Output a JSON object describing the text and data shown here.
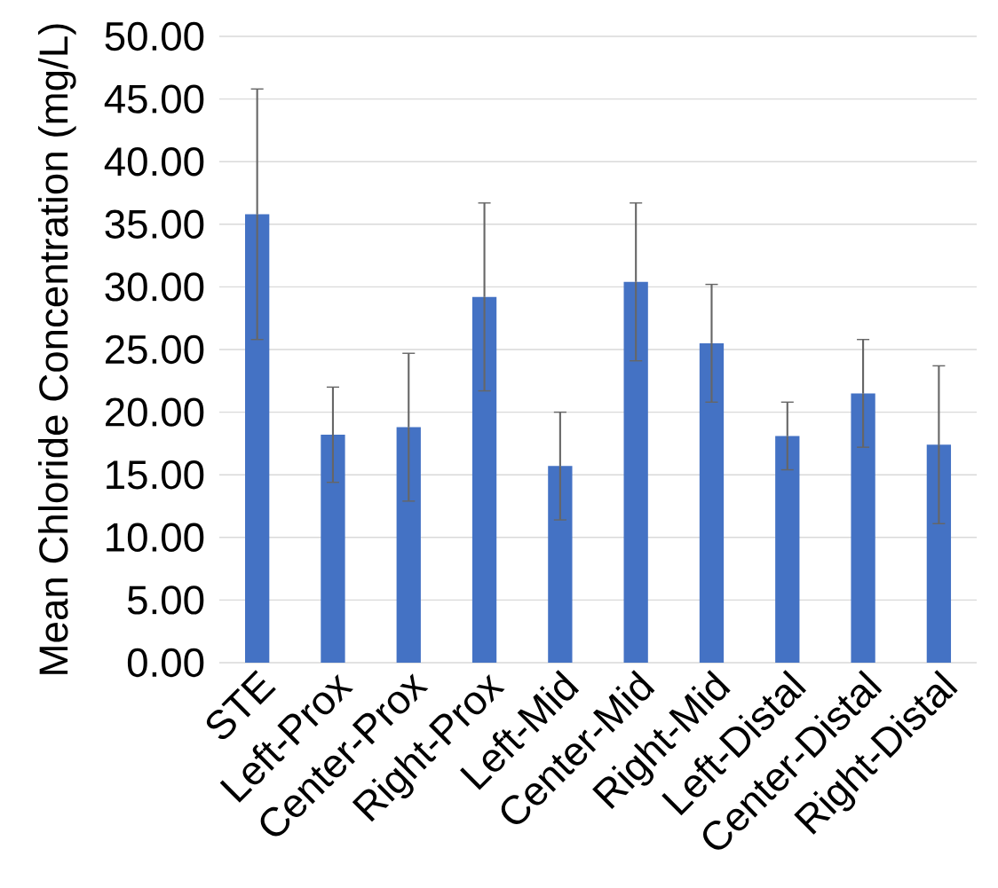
{
  "chart_data": {
    "type": "bar",
    "ylabel": "Mean Chloride Concentration (mg/L)",
    "categories": [
      "STE",
      "Left-Prox",
      "Center-Prox",
      "Right-Prox",
      "Left-Mid",
      "Center-Mid",
      "Right-Mid",
      "Left-Distal",
      "Center-Distal",
      "Right-Distal"
    ],
    "values": [
      35.8,
      18.2,
      18.8,
      29.2,
      15.7,
      30.4,
      25.5,
      18.1,
      21.5,
      17.4
    ],
    "errors": [
      10.0,
      3.8,
      5.9,
      7.5,
      4.3,
      6.3,
      4.7,
      2.7,
      4.3,
      6.3
    ],
    "color": "#4472c4",
    "ylim": [
      0,
      50
    ],
    "yticks": [
      {
        "value": 0,
        "label": "0.00"
      },
      {
        "value": 5,
        "label": "5.00"
      },
      {
        "value": 10,
        "label": "10.00"
      },
      {
        "value": 15,
        "label": "15.00"
      },
      {
        "value": 20,
        "label": "20.00"
      },
      {
        "value": 25,
        "label": "25.00"
      },
      {
        "value": 30,
        "label": "30.00"
      },
      {
        "value": 35,
        "label": "35.00"
      },
      {
        "value": 40,
        "label": "40.00"
      },
      {
        "value": 45,
        "label": "45.00"
      },
      {
        "value": 50,
        "label": "50.00"
      }
    ],
    "grid": "y"
  }
}
